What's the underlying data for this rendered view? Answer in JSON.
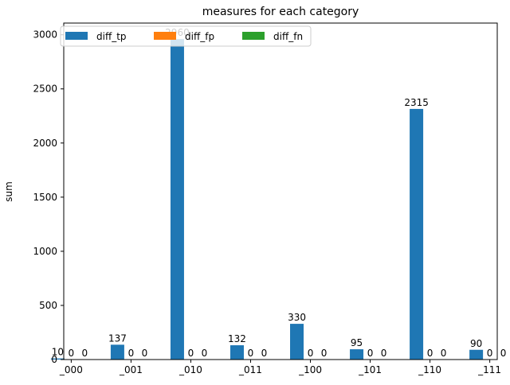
{
  "chart_data": {
    "type": "bar",
    "title": "measures for each category",
    "xlabel": "",
    "ylabel": "sum",
    "categories": [
      "_000",
      "_001",
      "_010",
      "_011",
      "_100",
      "_101",
      "_110",
      "_111"
    ],
    "series": [
      {
        "name": "diff_tp",
        "color": "#1f77b4",
        "values": [
          10,
          137,
          2960,
          132,
          330,
          95,
          2315,
          90
        ]
      },
      {
        "name": "diff_fp",
        "color": "#ff7f0e",
        "values": [
          0,
          0,
          0,
          0,
          0,
          0,
          0,
          0
        ]
      },
      {
        "name": "diff_fn",
        "color": "#2ca02c",
        "values": [
          0,
          0,
          0,
          0,
          0,
          0,
          0,
          0
        ]
      }
    ],
    "ylim": [
      0,
      3108
    ],
    "yticks": [
      0,
      500,
      1000,
      1500,
      2000,
      2500,
      3000
    ],
    "legend_position": "top-left",
    "grid": false
  }
}
